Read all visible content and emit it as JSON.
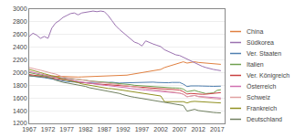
{
  "chart_data": {
    "type": "line",
    "x": [
      1967,
      1968,
      1969,
      1970,
      1971,
      1972,
      1973,
      1974,
      1975,
      1976,
      1977,
      1978,
      1979,
      1980,
      1981,
      1982,
      1983,
      1984,
      1985,
      1986,
      1987,
      1988,
      1989,
      1990,
      1991,
      1992,
      1993,
      1994,
      1995,
      1996,
      1997,
      1998,
      1999,
      2000,
      2001,
      2002,
      2003,
      2004,
      2005,
      2006,
      2007,
      2008,
      2009,
      2010,
      2011,
      2012,
      2013,
      2014,
      2015,
      2016,
      2017,
      2018
    ],
    "series": [
      {
        "name": "China",
        "color": "#e08040",
        "values": [
          1960,
          1945,
          1950,
          1955,
          1950,
          1948,
          1945,
          1942,
          1938,
          1935,
          1933,
          1930,
          1928,
          1930,
          1932,
          1934,
          1936,
          1938,
          1940,
          1942,
          1944,
          1948,
          1950,
          1952,
          1954,
          1956,
          1960,
          1970,
          1980,
          1990,
          1995,
          2000,
          2010,
          2020,
          2030,
          2050,
          2080,
          2100,
          2120,
          2140,
          2160,
          2170,
          2150,
          2160,
          2170,
          2160,
          2155,
          2150,
          2145,
          2140,
          2135,
          2130
        ]
      },
      {
        "name": "Südkorea",
        "color": "#9b72b0",
        "values": [
          2570,
          2620,
          2590,
          2540,
          2570,
          2540,
          2700,
          2780,
          2820,
          2870,
          2900,
          2930,
          2940,
          2910,
          2940,
          2950,
          2960,
          2970,
          2960,
          2970,
          2960,
          2900,
          2820,
          2740,
          2680,
          2630,
          2580,
          2520,
          2480,
          2460,
          2420,
          2500,
          2470,
          2450,
          2430,
          2410,
          2360,
          2330,
          2300,
          2280,
          2270,
          2240,
          2220,
          2190,
          2160,
          2120,
          2100,
          2080,
          2060,
          2050,
          2040,
          2030
        ]
      },
      {
        "name": "Ver. Staaten",
        "color": "#5080b0",
        "values": [
          1950,
          1945,
          1940,
          1930,
          1920,
          1910,
          1900,
          1880,
          1870,
          1860,
          1858,
          1855,
          1850,
          1845,
          1843,
          1840,
          1845,
          1850,
          1848,
          1845,
          1840,
          1845,
          1848,
          1840,
          1835,
          1838,
          1840,
          1845,
          1842,
          1840,
          1842,
          1845,
          1847,
          1850,
          1845,
          1840,
          1838,
          1840,
          1845,
          1847,
          1845,
          1820,
          1780,
          1790,
          1795,
          1790,
          1788,
          1790,
          1785,
          1783,
          1780,
          1786
        ]
      },
      {
        "name": "Italien",
        "color": "#70a050",
        "values": [
          2000,
          1985,
          1970,
          1960,
          1950,
          1940,
          1935,
          1928,
          1920,
          1910,
          1905,
          1900,
          1895,
          1890,
          1885,
          1880,
          1870,
          1865,
          1860,
          1855,
          1850,
          1848,
          1845,
          1840,
          1835,
          1830,
          1820,
          1810,
          1800,
          1795,
          1790,
          1788,
          1785,
          1780,
          1778,
          1775,
          1770,
          1765,
          1760,
          1758,
          1755,
          1740,
          1700,
          1710,
          1720,
          1700,
          1680,
          1670,
          1675,
          1680,
          1720,
          1730
        ]
      },
      {
        "name": "Ver. Königreich",
        "color": "#c84040",
        "values": [
          1970,
          1960,
          1952,
          1945,
          1935,
          1925,
          1915,
          1905,
          1895,
          1888,
          1882,
          1876,
          1870,
          1852,
          1842,
          1836,
          1832,
          1826,
          1822,
          1816,
          1812,
          1810,
          1807,
          1800,
          1792,
          1786,
          1780,
          1778,
          1775,
          1770,
          1768,
          1765,
          1760,
          1758,
          1752,
          1746,
          1742,
          1738,
          1735,
          1732,
          1726,
          1700,
          1662,
          1672,
          1666,
          1660,
          1658,
          1660,
          1665,
          1670,
          1680,
          1685
        ]
      },
      {
        "name": "Österreich",
        "color": "#d070b0",
        "values": [
          2020,
          2000,
          1990,
          1978,
          1960,
          1950,
          1940,
          1928,
          1910,
          1900,
          1890,
          1880,
          1870,
          1860,
          1850,
          1840,
          1830,
          1820,
          1810,
          1805,
          1800,
          1795,
          1790,
          1785,
          1780,
          1775,
          1760,
          1750,
          1740,
          1735,
          1730,
          1725,
          1720,
          1715,
          1710,
          1700,
          1695,
          1690,
          1685,
          1680,
          1675,
          1660,
          1620,
          1630,
          1640,
          1625,
          1620,
          1610,
          1608,
          1605,
          1600,
          1600
        ]
      },
      {
        "name": "Schweiz",
        "color": "#e0a0a0",
        "values": [
          2080,
          2060,
          2050,
          2038,
          2020,
          2000,
          1990,
          1978,
          1950,
          1930,
          1920,
          1910,
          1900,
          1890,
          1880,
          1870,
          1860,
          1855,
          1850,
          1845,
          1840,
          1835,
          1830,
          1820,
          1810,
          1800,
          1790,
          1780,
          1770,
          1760,
          1750,
          1745,
          1740,
          1738,
          1730,
          1720,
          1710,
          1700,
          1695,
          1685,
          1680,
          1660,
          1620,
          1630,
          1640,
          1620,
          1610,
          1600,
          1595,
          1590,
          1585,
          1580
        ]
      },
      {
        "name": "Frankreich",
        "color": "#909020",
        "values": [
          2050,
          2030,
          2015,
          2000,
          1982,
          1962,
          1950,
          1940,
          1912,
          1892,
          1882,
          1872,
          1862,
          1842,
          1822,
          1812,
          1792,
          1782,
          1772,
          1762,
          1752,
          1750,
          1747,
          1742,
          1732,
          1722,
          1712,
          1702,
          1692,
          1682,
          1672,
          1662,
          1652,
          1642,
          1637,
          1632,
          1542,
          1542,
          1547,
          1547,
          1547,
          1542,
          1522,
          1542,
          1547,
          1542,
          1537,
          1532,
          1527,
          1527,
          1522,
          1522
        ]
      },
      {
        "name": "Deutschland",
        "color": "#708060",
        "values": [
          1950,
          1942,
          1938,
          1935,
          1930,
          1920,
          1910,
          1882,
          1862,
          1847,
          1837,
          1827,
          1822,
          1812,
          1797,
          1782,
          1762,
          1752,
          1742,
          1732,
          1722,
          1712,
          1702,
          1682,
          1672,
          1652,
          1632,
          1622,
          1612,
          1602,
          1592,
          1582,
          1577,
          1572,
          1562,
          1552,
          1542,
          1532,
          1522,
          1512,
          1502,
          1482,
          1392,
          1412,
          1422,
          1402,
          1392,
          1382,
          1377,
          1372,
          1367,
          1365
        ]
      }
    ],
    "xlim": [
      1967,
      2019
    ],
    "ylim": [
      1200,
      3000
    ],
    "xticks": [
      1967,
      1972,
      1977,
      1982,
      1987,
      1992,
      1997,
      2002,
      2007,
      2012,
      2017
    ],
    "yticks": [
      1200,
      1400,
      1600,
      1800,
      2000,
      2200,
      2400,
      2600,
      2800,
      3000
    ],
    "grid": "y",
    "legend": "right"
  }
}
